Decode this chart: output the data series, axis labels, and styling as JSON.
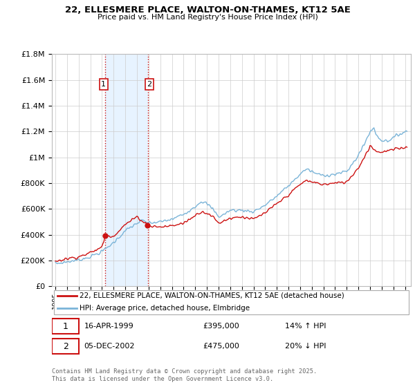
{
  "title_line1": "22, ELLESMERE PLACE, WALTON-ON-THAMES, KT12 5AE",
  "title_line2": "Price paid vs. HM Land Registry's House Price Index (HPI)",
  "hpi_label": "HPI: Average price, detached house, Elmbridge",
  "property_label": "22, ELLESMERE PLACE, WALTON-ON-THAMES, KT12 5AE (detached house)",
  "hpi_color": "#7ab4d8",
  "property_color": "#cc1111",
  "sale1_date_x": 1999.29,
  "sale1_price": 395000,
  "sale2_date_x": 2002.92,
  "sale2_price": 475000,
  "ylim_min": 0,
  "ylim_max": 1800000,
  "xlim_min": 1994.7,
  "xlim_max": 2025.5,
  "shade_color": "#ddeeff",
  "background_color": "#ffffff",
  "grid_color": "#cccccc",
  "footnote": "Contains HM Land Registry data © Crown copyright and database right 2025.\nThis data is licensed under the Open Government Licence v3.0.",
  "hpi_anchors_x": [
    1995.0,
    1996.0,
    1997.0,
    1998.0,
    1999.0,
    2000.0,
    2001.0,
    2002.0,
    2002.5,
    2003.0,
    2004.0,
    2005.0,
    2006.0,
    2007.0,
    2007.5,
    2008.0,
    2008.5,
    2009.0,
    2009.5,
    2010.0,
    2011.0,
    2012.0,
    2013.0,
    2014.0,
    2015.0,
    2016.0,
    2016.5,
    2017.0,
    2017.5,
    2018.0,
    2019.0,
    2020.0,
    2020.5,
    2021.0,
    2021.5,
    2022.0,
    2022.3,
    2022.5,
    2023.0,
    2023.5,
    2024.0,
    2024.5,
    2025.0
  ],
  "hpi_anchors_y": [
    175000,
    190000,
    205000,
    230000,
    270000,
    340000,
    430000,
    490000,
    510000,
    490000,
    500000,
    520000,
    560000,
    620000,
    660000,
    640000,
    600000,
    540000,
    560000,
    590000,
    590000,
    580000,
    630000,
    700000,
    780000,
    870000,
    910000,
    890000,
    870000,
    860000,
    870000,
    890000,
    950000,
    1020000,
    1100000,
    1200000,
    1230000,
    1180000,
    1130000,
    1130000,
    1150000,
    1180000,
    1200000
  ],
  "prop_anchors_x": [
    1995.0,
    1996.0,
    1997.0,
    1998.0,
    1999.0,
    1999.29,
    2000.0,
    2001.0,
    2002.0,
    2002.92,
    2003.0,
    2004.0,
    2005.0,
    2006.0,
    2007.0,
    2007.5,
    2008.0,
    2008.5,
    2009.0,
    2009.5,
    2010.0,
    2011.0,
    2012.0,
    2013.0,
    2014.0,
    2015.0,
    2016.0,
    2016.5,
    2017.0,
    2018.0,
    2019.0,
    2020.0,
    2021.0,
    2021.5,
    2022.0,
    2022.5,
    2023.0,
    2024.0,
    2025.0
  ],
  "prop_anchors_y": [
    195000,
    215000,
    230000,
    260000,
    305000,
    395000,
    390000,
    480000,
    540000,
    475000,
    470000,
    460000,
    470000,
    490000,
    550000,
    580000,
    570000,
    540000,
    490000,
    510000,
    530000,
    540000,
    520000,
    570000,
    640000,
    710000,
    790000,
    820000,
    810000,
    790000,
    800000,
    810000,
    920000,
    1000000,
    1090000,
    1050000,
    1040000,
    1060000,
    1080000
  ]
}
